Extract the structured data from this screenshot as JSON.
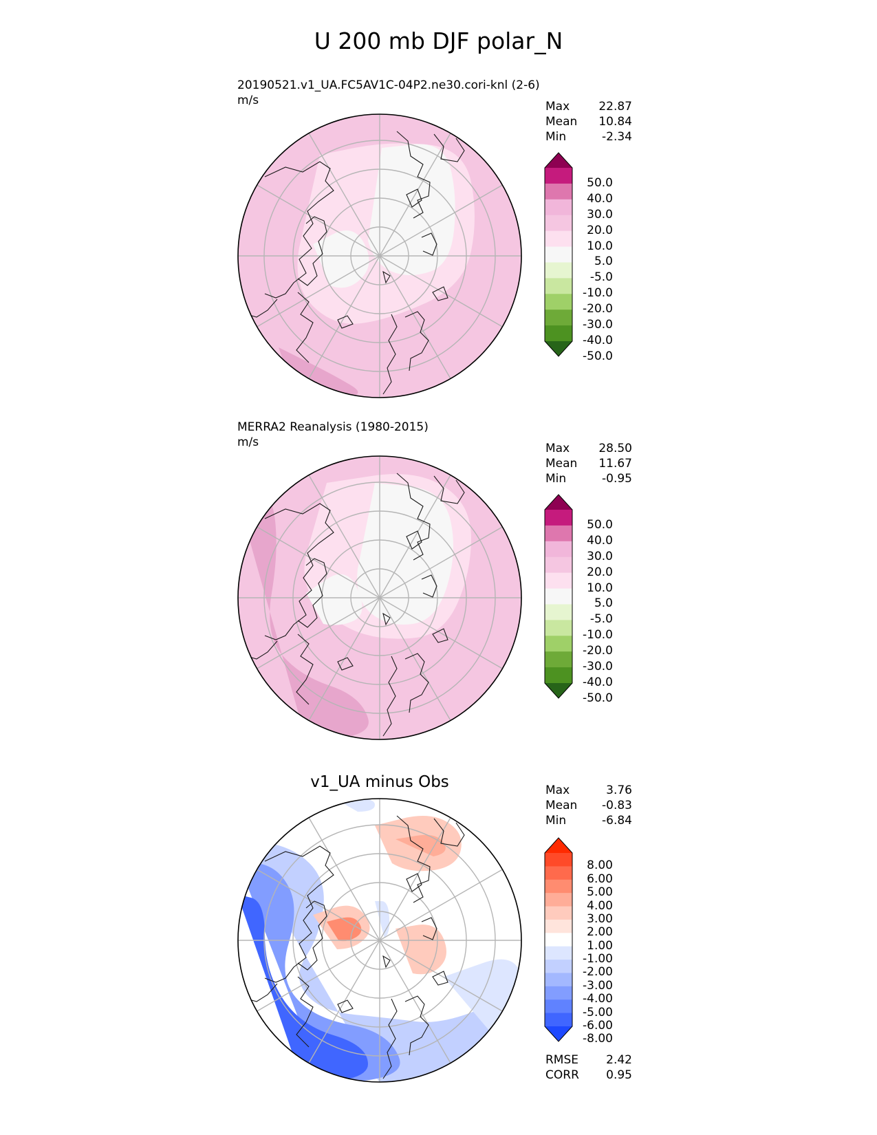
{
  "title": "U 200 mb DJF polar_N",
  "panels": [
    {
      "title": "20190521.v1_UA.FC5AV1C-04P2.ne30.cori-knl (2-6)",
      "units": "m/s",
      "stats": [
        {
          "label": "Max",
          "value": "22.87"
        },
        {
          "label": "Mean",
          "value": "10.84"
        },
        {
          "label": "Min",
          "value": "-2.34"
        }
      ],
      "colorbar": {
        "labels": [
          "50.0",
          "40.0",
          "30.0",
          "20.0",
          "10.0",
          "5.0",
          "-5.0",
          "-10.0",
          "-20.0",
          "-30.0",
          "-40.0",
          "-50.0"
        ],
        "colors": [
          "#8e0152",
          "#c51b7d",
          "#de77ae",
          "#f1b6da",
          "#f5c6e1",
          "#fde0ef",
          "#f7f7f7",
          "#e6f5d0",
          "#c9e7a0",
          "#9fd068",
          "#6eaa38",
          "#4d9221",
          "#276419"
        ]
      }
    },
    {
      "title": "MERRA2 Reanalysis (1980-2015)",
      "units": "m/s",
      "stats": [
        {
          "label": "Max",
          "value": "28.50"
        },
        {
          "label": "Mean",
          "value": "11.67"
        },
        {
          "label": "Min",
          "value": "-0.95"
        }
      ],
      "colorbar": {
        "labels": [
          "50.0",
          "40.0",
          "30.0",
          "20.0",
          "10.0",
          "5.0",
          "-5.0",
          "-10.0",
          "-20.0",
          "-30.0",
          "-40.0",
          "-50.0"
        ],
        "colors": [
          "#8e0152",
          "#c51b7d",
          "#de77ae",
          "#f1b6da",
          "#f5c6e1",
          "#fde0ef",
          "#f7f7f7",
          "#e6f5d0",
          "#c9e7a0",
          "#9fd068",
          "#6eaa38",
          "#4d9221",
          "#276419"
        ]
      }
    },
    {
      "title": "v1_UA minus Obs",
      "units": "",
      "stats": [
        {
          "label": "Max",
          "value": "3.76"
        },
        {
          "label": "Mean",
          "value": "-0.83"
        },
        {
          "label": "Min",
          "value": "-6.84"
        }
      ],
      "metrics": [
        {
          "label": "RMSE",
          "value": "2.42"
        },
        {
          "label": "CORR",
          "value": "0.95"
        }
      ],
      "colorbar": {
        "labels": [
          "8.00",
          "6.00",
          "5.00",
          "4.00",
          "3.00",
          "2.00",
          "1.00",
          "-1.00",
          "-2.00",
          "-3.00",
          "-4.00",
          "-5.00",
          "-6.00",
          "-8.00"
        ],
        "colors": [
          "#ff2a00",
          "#ff4a28",
          "#ff6a4c",
          "#ff8c70",
          "#ffad98",
          "#ffcbbd",
          "#ffe4dc",
          "#ffffff",
          "#dde6ff",
          "#c2d0ff",
          "#a3b8ff",
          "#829dff",
          "#6082ff",
          "#4066ff",
          "#1e49ff"
        ]
      }
    }
  ]
}
